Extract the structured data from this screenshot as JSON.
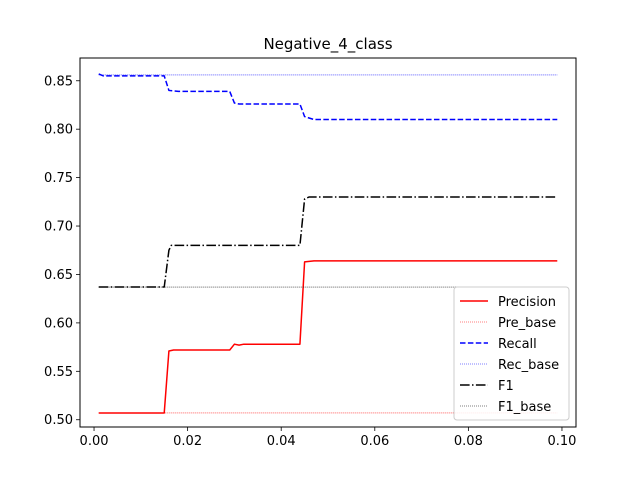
{
  "chart_data": {
    "type": "line",
    "title": "Negative_4_class",
    "xlabel": "",
    "ylabel": "",
    "xlim": [
      -0.003,
      0.103
    ],
    "ylim": [
      0.4925,
      0.8735
    ],
    "x_ticks": [
      0.0,
      0.02,
      0.04,
      0.06,
      0.08,
      0.1
    ],
    "x_tick_labels": [
      "0.00",
      "0.02",
      "0.04",
      "0.06",
      "0.08",
      "0.10"
    ],
    "y_ticks": [
      0.5,
      0.55,
      0.6,
      0.65,
      0.7,
      0.75,
      0.8,
      0.85
    ],
    "y_tick_labels": [
      "0.50",
      "0.55",
      "0.60",
      "0.65",
      "0.70",
      "0.75",
      "0.80",
      "0.85"
    ],
    "grid": false,
    "legend_position": "lower-right",
    "series": [
      {
        "name": "Precision",
        "color": "#ff0000",
        "dash": "solid",
        "width": 1.5,
        "points": [
          [
            0.001,
            0.507
          ],
          [
            0.015,
            0.507
          ],
          [
            0.016,
            0.571
          ],
          [
            0.017,
            0.572
          ],
          [
            0.029,
            0.572
          ],
          [
            0.03,
            0.578
          ],
          [
            0.031,
            0.577
          ],
          [
            0.032,
            0.578
          ],
          [
            0.044,
            0.578
          ],
          [
            0.045,
            0.663
          ],
          [
            0.047,
            0.664
          ],
          [
            0.099,
            0.664
          ]
        ]
      },
      {
        "name": "Pre_base",
        "color": "#ff0000",
        "dash": "dotted",
        "width": 0.6,
        "points": [
          [
            0.001,
            0.507
          ],
          [
            0.099,
            0.507
          ]
        ]
      },
      {
        "name": "Recall",
        "color": "#0000ff",
        "dash": "dashed",
        "width": 1.5,
        "points": [
          [
            0.001,
            0.857
          ],
          [
            0.002,
            0.855
          ],
          [
            0.015,
            0.855
          ],
          [
            0.016,
            0.84
          ],
          [
            0.018,
            0.839
          ],
          [
            0.029,
            0.839
          ],
          [
            0.03,
            0.827
          ],
          [
            0.031,
            0.826
          ],
          [
            0.044,
            0.826
          ],
          [
            0.045,
            0.813
          ],
          [
            0.047,
            0.81
          ],
          [
            0.099,
            0.81
          ]
        ]
      },
      {
        "name": "Rec_base",
        "color": "#0000ff",
        "dash": "dotted",
        "width": 0.6,
        "points": [
          [
            0.001,
            0.856
          ],
          [
            0.099,
            0.856
          ]
        ]
      },
      {
        "name": "F1",
        "color": "#000000",
        "dash": "dashdot",
        "width": 1.5,
        "points": [
          [
            0.001,
            0.637
          ],
          [
            0.015,
            0.637
          ],
          [
            0.016,
            0.675
          ],
          [
            0.0165,
            0.68
          ],
          [
            0.029,
            0.68
          ],
          [
            0.044,
            0.68
          ],
          [
            0.045,
            0.728
          ],
          [
            0.046,
            0.73
          ],
          [
            0.099,
            0.73
          ]
        ]
      },
      {
        "name": "F1_base",
        "color": "#000000",
        "dash": "dotted",
        "width": 0.6,
        "points": [
          [
            0.001,
            0.637
          ],
          [
            0.099,
            0.637
          ]
        ]
      }
    ]
  }
}
